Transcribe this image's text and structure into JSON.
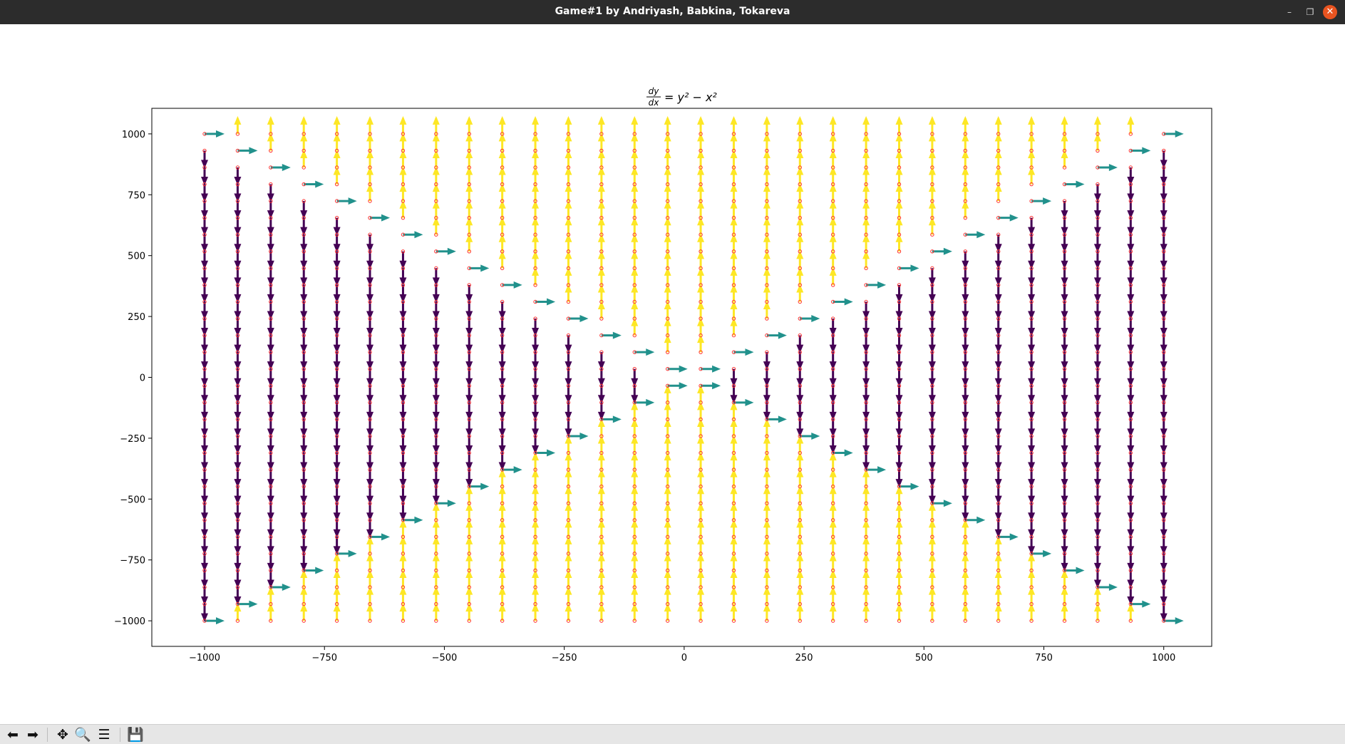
{
  "window": {
    "title": "Game#1 by Andriyash, Babkina, Tokareva",
    "minimize_glyph": "–",
    "restore_glyph": "❐",
    "close_glyph": "✕"
  },
  "toolbar": {
    "buttons": [
      {
        "name": "back-icon",
        "glyph": "⬅"
      },
      {
        "name": "forward-icon",
        "glyph": "➡"
      },
      {
        "name": "pan-icon",
        "glyph": "✥"
      },
      {
        "name": "zoom-icon",
        "glyph": "🔍"
      },
      {
        "name": "configure-subplots-icon",
        "glyph": "☰"
      },
      {
        "name": "save-icon",
        "glyph": "💾"
      }
    ]
  },
  "chart_data": {
    "type": "quiver",
    "title_lhs_num": "dy",
    "title_lhs_den": "dx",
    "title_rhs": "= y² − x²",
    "equation": "dy/dx = y^2 - x^2",
    "xlim": [
      -1110,
      1100
    ],
    "ylim": [
      -1105,
      1105
    ],
    "xticks": [
      -1000,
      -750,
      -500,
      -250,
      0,
      250,
      500,
      750,
      1000
    ],
    "yticks": [
      -1000,
      -750,
      -500,
      -250,
      0,
      250,
      500,
      750,
      1000
    ],
    "xtick_labels": [
      "−1000",
      "−750",
      "−500",
      "−250",
      "0",
      "250",
      "500",
      "750",
      "1000"
    ],
    "ytick_labels": [
      "−1000",
      "−750",
      "−500",
      "−250",
      "0",
      "250",
      "500",
      "750",
      "1000"
    ],
    "grid_start": -1000,
    "grid_end": 1000,
    "grid_count": 30,
    "colors": {
      "positive": "#fde725",
      "zero": "#21918c",
      "negative": "#440154",
      "point": "#ff3333"
    },
    "grid": false,
    "legend": "none"
  }
}
